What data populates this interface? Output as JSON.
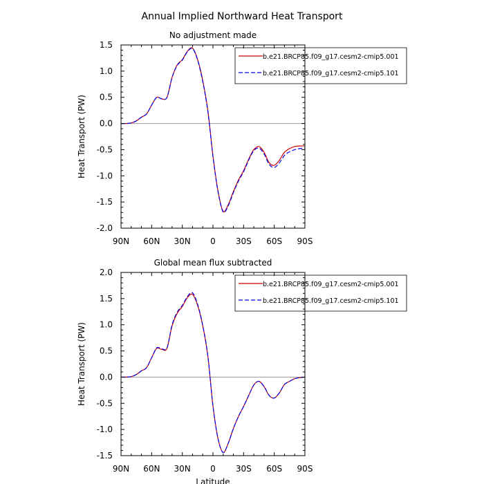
{
  "figure": {
    "title": "Annual Implied Northward Heat Transport"
  },
  "chart_data": [
    {
      "type": "line",
      "title": "No adjustment made",
      "xlabel": "",
      "ylabel": "Heat Transport (PW)",
      "xlim": [
        90,
        -90
      ],
      "ylim": [
        -2.0,
        1.5
      ],
      "xticks": [
        90,
        60,
        30,
        0,
        -30,
        -60,
        -90
      ],
      "xtick_labels": [
        "90N",
        "60N",
        "30N",
        "0",
        "30S",
        "60S",
        "90S"
      ],
      "yticks": [
        1.5,
        1.0,
        0.5,
        0.0,
        -0.5,
        -1.0,
        -1.5,
        -2.0
      ],
      "ytick_labels": [
        "1.5",
        "1.0",
        "0.5",
        "0.0",
        "-0.5",
        "-1.0",
        "-1.5",
        "-2.0"
      ],
      "legend_position": "top-right",
      "zero_line": true,
      "series": [
        {
          "name": "b.e21.BRCP85.f09_g17.cesm2-cmip5.001",
          "color": "#cc0000",
          "dash": "solid",
          "x": [
            90,
            85,
            80,
            75,
            70,
            65,
            60,
            55,
            50,
            45,
            40,
            35,
            30,
            25,
            20,
            15,
            10,
            5,
            0,
            -5,
            -10,
            -15,
            -20,
            -25,
            -30,
            -35,
            -40,
            -45,
            -50,
            -55,
            -60,
            -65,
            -70,
            -75,
            -80,
            -85,
            -90
          ],
          "y": [
            0.0,
            0.0,
            0.01,
            0.05,
            0.12,
            0.18,
            0.35,
            0.5,
            0.47,
            0.5,
            0.88,
            1.12,
            1.22,
            1.38,
            1.44,
            1.22,
            0.82,
            0.25,
            -0.62,
            -1.3,
            -1.68,
            -1.55,
            -1.3,
            -1.08,
            -0.9,
            -0.68,
            -0.5,
            -0.44,
            -0.55,
            -0.75,
            -0.8,
            -0.7,
            -0.55,
            -0.48,
            -0.44,
            -0.43,
            -0.43
          ]
        },
        {
          "name": "b.e21.BRCP85.f09_g17.cesm2-cmip5.101",
          "color": "#0000ee",
          "dash": "dashed",
          "x": [
            90,
            85,
            80,
            75,
            70,
            65,
            60,
            55,
            50,
            45,
            40,
            35,
            30,
            25,
            20,
            15,
            10,
            5,
            0,
            -5,
            -10,
            -15,
            -20,
            -25,
            -30,
            -35,
            -40,
            -45,
            -50,
            -55,
            -60,
            -65,
            -70,
            -75,
            -80,
            -85,
            -90
          ],
          "y": [
            0.0,
            0.0,
            0.01,
            0.05,
            0.12,
            0.18,
            0.35,
            0.5,
            0.47,
            0.5,
            0.88,
            1.11,
            1.21,
            1.37,
            1.43,
            1.21,
            0.8,
            0.23,
            -0.63,
            -1.31,
            -1.69,
            -1.57,
            -1.32,
            -1.1,
            -0.92,
            -0.7,
            -0.52,
            -0.47,
            -0.58,
            -0.78,
            -0.84,
            -0.75,
            -0.61,
            -0.54,
            -0.5,
            -0.48,
            -0.47
          ]
        }
      ]
    },
    {
      "type": "line",
      "title": "Global mean flux subtracted",
      "xlabel": "Latitude",
      "ylabel": "Heat Transport (PW)",
      "xlim": [
        90,
        -90
      ],
      "ylim": [
        -1.5,
        2.0
      ],
      "xticks": [
        90,
        60,
        30,
        0,
        -30,
        -60,
        -90
      ],
      "xtick_labels": [
        "90N",
        "60N",
        "30N",
        "0",
        "30S",
        "60S",
        "90S"
      ],
      "yticks": [
        2.0,
        1.5,
        1.0,
        0.5,
        0.0,
        -0.5,
        -1.0,
        -1.5
      ],
      "ytick_labels": [
        "2.0",
        "1.5",
        "1.0",
        "0.5",
        "0.0",
        "-0.5",
        "-1.0",
        "-1.5"
      ],
      "legend_position": "top-right",
      "zero_line": true,
      "series": [
        {
          "name": "b.e21.BRCP85.f09_g17.cesm2-cmip5.001",
          "color": "#cc0000",
          "dash": "solid",
          "x": [
            90,
            85,
            80,
            75,
            70,
            65,
            60,
            55,
            50,
            45,
            40,
            35,
            30,
            25,
            20,
            15,
            10,
            5,
            0,
            -5,
            -10,
            -15,
            -20,
            -25,
            -30,
            -35,
            -40,
            -45,
            -50,
            -55,
            -60,
            -65,
            -70,
            -75,
            -80,
            -85,
            -90
          ],
          "y": [
            0.0,
            0.0,
            0.01,
            0.05,
            0.12,
            0.18,
            0.37,
            0.55,
            0.53,
            0.55,
            0.98,
            1.22,
            1.35,
            1.52,
            1.58,
            1.37,
            0.98,
            0.4,
            -0.55,
            -1.18,
            -1.44,
            -1.26,
            -0.98,
            -0.75,
            -0.56,
            -0.35,
            -0.15,
            -0.08,
            -0.18,
            -0.35,
            -0.4,
            -0.3,
            -0.14,
            -0.08,
            -0.03,
            -0.01,
            0.0
          ]
        },
        {
          "name": "b.e21.BRCP85.f09_g17.cesm2-cmip5.101",
          "color": "#0000ee",
          "dash": "dashed",
          "x": [
            90,
            85,
            80,
            75,
            70,
            65,
            60,
            55,
            50,
            45,
            40,
            35,
            30,
            25,
            20,
            15,
            10,
            5,
            0,
            -5,
            -10,
            -15,
            -20,
            -25,
            -30,
            -35,
            -40,
            -45,
            -50,
            -55,
            -60,
            -65,
            -70,
            -75,
            -80,
            -85,
            -90
          ],
          "y": [
            0.0,
            0.0,
            0.01,
            0.05,
            0.12,
            0.18,
            0.37,
            0.56,
            0.54,
            0.56,
            1.0,
            1.24,
            1.37,
            1.54,
            1.61,
            1.39,
            0.99,
            0.41,
            -0.55,
            -1.18,
            -1.44,
            -1.26,
            -0.98,
            -0.75,
            -0.56,
            -0.35,
            -0.15,
            -0.08,
            -0.18,
            -0.35,
            -0.4,
            -0.3,
            -0.14,
            -0.08,
            -0.03,
            -0.01,
            0.0
          ]
        }
      ]
    }
  ]
}
